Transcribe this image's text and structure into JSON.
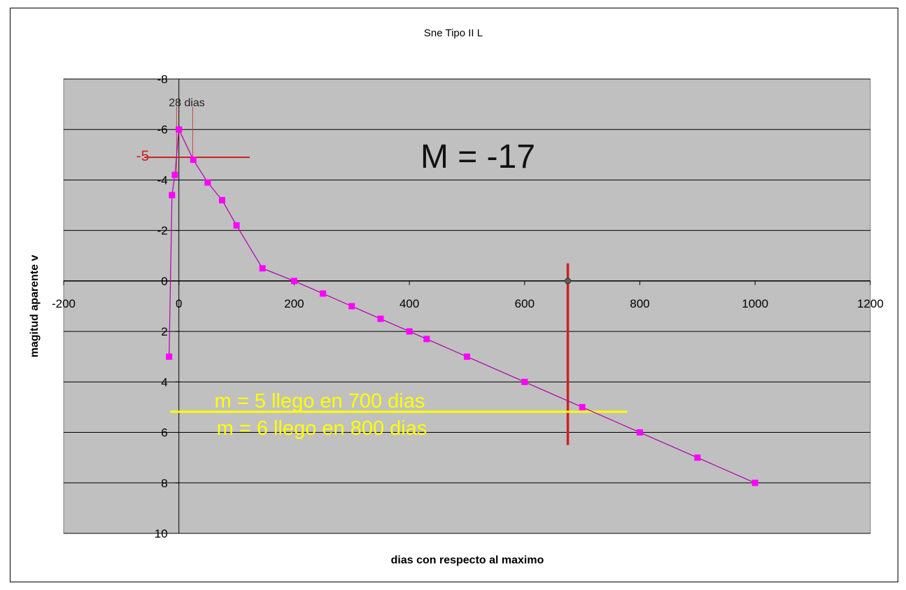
{
  "chart_data": {
    "type": "line",
    "title": "Sne Tipo II L",
    "xlabel": "dias con respecto al maximo",
    "ylabel": "magitud aparente v",
    "xlim": [
      -200,
      1200
    ],
    "ylim": [
      10,
      -8
    ],
    "y_inverted": true,
    "grid": true,
    "x_ticks": [
      -200,
      0,
      200,
      400,
      600,
      800,
      1000,
      1200
    ],
    "y_ticks": [
      -8,
      -6,
      -4,
      -2,
      0,
      2,
      4,
      6,
      8,
      10
    ],
    "plot_background": "#c0c0c0",
    "series": [
      {
        "color": "#ff00ff",
        "x": [
          -17,
          -12,
          -7,
          0,
          25,
          50,
          75,
          100,
          145,
          200,
          250,
          300,
          350,
          400,
          430,
          500,
          600,
          700,
          800,
          900,
          1000
        ],
        "y": [
          3.0,
          -3.4,
          -4.2,
          -6.0,
          -4.8,
          -3.9,
          -3.2,
          -2.2,
          -0.5,
          0.0,
          0.5,
          1.0,
          1.5,
          2.0,
          2.3,
          3.0,
          4.0,
          5.0,
          6.0,
          7.0,
          8.0
        ]
      }
    ],
    "extra_point": {
      "x": 675,
      "y": 0,
      "color": "#606060"
    },
    "annotations": {
      "absolute_magnitude": "M = -17",
      "days_28": "28 dias",
      "peak_minus_5": "-5",
      "line_m5": "m = 5 llego en 700 dias",
      "line_m6": "m = 6 llego en 800 dias"
    },
    "colors": {
      "red_line": "#cc2222",
      "yellow_line": "#ffff00",
      "axis_red": "#cc2222"
    }
  }
}
